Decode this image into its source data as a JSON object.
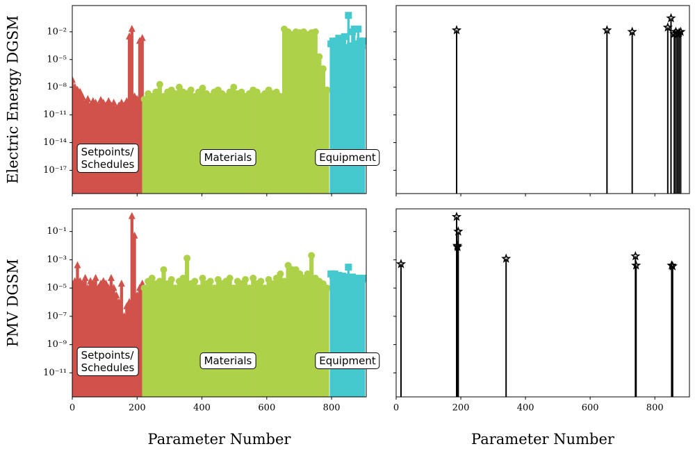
{
  "chart_data": [
    {
      "type": "stem",
      "log_y": true,
      "ylabel": "Electric Energy DGSM",
      "xlim": [
        0,
        907
      ],
      "ylim": [
        3e-20,
        7
      ],
      "xticks": [
        0,
        200,
        400,
        600,
        800
      ],
      "yticks": [
        {
          "value": 1e-17,
          "label": "10⁻¹⁷"
        },
        {
          "value": 1e-14,
          "label": "10⁻¹⁴"
        },
        {
          "value": 1e-11,
          "label": "10⁻¹¹"
        },
        {
          "value": 1e-08,
          "label": "10⁻⁸"
        },
        {
          "value": 1e-05,
          "label": "10⁻⁵"
        },
        {
          "value": 0.01,
          "label": "10⁻²"
        }
      ],
      "annotations": [
        "Setpoints/\nSchedules",
        "Materials",
        "Equipment"
      ],
      "series": [
        {
          "color": "#d0524a",
          "marker": "triangle",
          "x": [
            0,
            8,
            16,
            24,
            32,
            40,
            48,
            56,
            64,
            72,
            80,
            88,
            96,
            104,
            112,
            120,
            128,
            136,
            144,
            152,
            160,
            168,
            176,
            184,
            192,
            200,
            208,
            216
          ],
          "values": [
            6e-08,
            1e-08,
            5e-09,
            3e-09,
            8e-10,
            2e-10,
            5e-10,
            1e-10,
            3e-10,
            2e-10,
            1e-10,
            4e-10,
            2e-10,
            1e-10,
            3e-10,
            1e-10,
            2e-10,
            5e-11,
            1e-10,
            2e-10,
            1e-10,
            3e-10,
            0.003,
            0.02,
            1e-09,
            5e-10,
            0.001,
            0.002
          ]
        },
        {
          "color": "#aed14a",
          "marker": "circle",
          "x": [
            222,
            234,
            246,
            258,
            270,
            282,
            294,
            306,
            318,
            330,
            342,
            354,
            366,
            378,
            390,
            402,
            414,
            426,
            438,
            450,
            462,
            474,
            486,
            498,
            510,
            522,
            534,
            546,
            558,
            570,
            582,
            594,
            606,
            618,
            630,
            642,
            654,
            666,
            678,
            690,
            702,
            714,
            726,
            738,
            750,
            762,
            774,
            786
          ],
          "values": [
            5e-10,
            2e-09,
            1e-09,
            3e-09,
            2e-08,
            1e-09,
            3e-09,
            5e-09,
            2e-09,
            1e-08,
            3e-09,
            2e-09,
            5e-09,
            1e-09,
            3e-09,
            8e-09,
            2e-09,
            1e-09,
            3e-09,
            5e-09,
            2e-09,
            1e-09,
            3e-09,
            1e-08,
            2e-09,
            3e-09,
            1e-09,
            2e-09,
            5e-09,
            3e-09,
            1e-09,
            2e-09,
            5e-09,
            2e-09,
            3e-09,
            1e-09,
            0.02,
            0.01,
            0.005,
            0.01,
            0.008,
            0.01,
            0.005,
            0.008,
            0.01,
            2e-05,
            1e-06,
            5e-09
          ]
        },
        {
          "color": "#45c9cf",
          "marker": "square",
          "x": [
            798,
            804,
            810,
            816,
            822,
            828,
            834,
            840,
            846,
            852,
            858,
            864,
            870,
            876,
            882,
            888,
            894,
            900
          ],
          "values": [
            0.0005,
            0.001,
            0.0003,
            0.001,
            0.002,
            0.0005,
            0.001,
            0.003,
            0.0002,
            0.6,
            0.0003,
            0.01,
            0.02,
            0.0005,
            0.02,
            0.001,
            0.0003,
            0.001
          ]
        }
      ]
    },
    {
      "type": "stem",
      "log_y": true,
      "xlim": [
        0,
        907
      ],
      "ylim": [
        3e-20,
        7
      ],
      "xticks": [
        0,
        200,
        400,
        600,
        800
      ],
      "yticks": [
        1e-17,
        1e-14,
        1e-11,
        1e-08,
        1e-05,
        0.01
      ],
      "series": [
        {
          "color": "#000000",
          "marker": "star",
          "x": [
            187,
            652,
            730,
            840,
            850,
            860,
            865,
            870,
            875,
            880
          ],
          "values": [
            0.015,
            0.015,
            0.01,
            0.03,
            0.3,
            0.006,
            0.01,
            0.006,
            0.008,
            0.01
          ]
        }
      ]
    },
    {
      "type": "stem",
      "log_y": true,
      "ylabel": "PMV DGSM",
      "xlabel": "Parameter Number",
      "xlim": [
        0,
        907
      ],
      "ylim": [
        2e-13,
        4
      ],
      "xticks": [
        0,
        200,
        400,
        600,
        800
      ],
      "yticks": [
        {
          "value": 1e-11,
          "label": "10⁻¹¹"
        },
        {
          "value": 1e-09,
          "label": "10⁻⁹"
        },
        {
          "value": 1e-07,
          "label": "10⁻⁷"
        },
        {
          "value": 1e-05,
          "label": "10⁻⁵"
        },
        {
          "value": 0.001,
          "label": "10⁻³"
        },
        {
          "value": 0.1,
          "label": "10⁻¹"
        }
      ],
      "annotations": [
        "Setpoints/\nSchedules",
        "Materials",
        "Equipment"
      ],
      "series": [
        {
          "color": "#d0524a",
          "marker": "triangle",
          "x": [
            0,
            8,
            16,
            24,
            32,
            40,
            48,
            56,
            64,
            72,
            80,
            88,
            96,
            104,
            112,
            120,
            128,
            136,
            144,
            152,
            160,
            168,
            176,
            184,
            192,
            200,
            208,
            216
          ],
          "values": [
            2e-05,
            3e-05,
            0.0004,
            3e-05,
            2e-05,
            5e-05,
            1e-05,
            3e-05,
            2e-05,
            5e-05,
            1e-05,
            2e-05,
            3e-05,
            2e-05,
            1e-05,
            5e-05,
            1e-05,
            3e-06,
            1e-06,
            2e-05,
            1e-07,
            5e-07,
            1e-06,
            1.2,
            0.05,
            3e-06,
            1e-05,
            2e-05
          ]
        },
        {
          "color": "#aed14a",
          "marker": "circle",
          "x": [
            222,
            234,
            246,
            258,
            270,
            282,
            294,
            306,
            318,
            330,
            342,
            354,
            366,
            378,
            390,
            402,
            414,
            426,
            438,
            450,
            462,
            474,
            486,
            498,
            510,
            522,
            534,
            546,
            558,
            570,
            582,
            594,
            606,
            618,
            630,
            642,
            654,
            666,
            678,
            690,
            702,
            714,
            726,
            738,
            750,
            762,
            774,
            786
          ],
          "values": [
            1e-05,
            3e-05,
            5e-05,
            2e-05,
            3e-05,
            0.0002,
            2e-05,
            4e-05,
            1e-05,
            3e-05,
            5e-05,
            0.0013,
            2e-05,
            3e-05,
            1e-05,
            5e-05,
            2e-05,
            3e-05,
            1e-05,
            4e-05,
            2e-05,
            3e-05,
            5e-05,
            1e-05,
            3e-05,
            2e-05,
            4e-05,
            1e-05,
            5e-05,
            2e-05,
            3e-05,
            1e-05,
            4e-05,
            2e-05,
            5e-05,
            0.0001,
            3e-05,
            0.0004,
            0.0002,
            0.0002,
            0.0001,
            5e-05,
            0.0001,
            0.002,
            5e-05,
            3e-05,
            2e-05,
            1e-05
          ]
        },
        {
          "color": "#45c9cf",
          "marker": "square",
          "x": [
            798,
            804,
            810,
            816,
            822,
            828,
            834,
            840,
            846,
            852,
            858,
            864,
            870,
            876,
            882,
            888,
            894,
            900
          ],
          "values": [
            0.0001,
            8e-05,
            0.0001,
            6e-05,
            8e-05,
            5e-05,
            7e-05,
            5e-05,
            6e-05,
            0.0003,
            5e-05,
            6e-05,
            4e-05,
            5e-05,
            4e-05,
            5e-05,
            4e-05,
            5e-05
          ]
        }
      ]
    },
    {
      "type": "stem",
      "log_y": true,
      "xlabel": "Parameter Number",
      "xlim": [
        0,
        907
      ],
      "ylim": [
        2e-13,
        4
      ],
      "xticks": [
        0,
        200,
        400,
        600,
        800
      ],
      "yticks": [
        1e-11,
        1e-09,
        1e-07,
        1e-05,
        0.001,
        0.1
      ],
      "series": [
        {
          "color": "#000000",
          "marker": "star",
          "x": [
            15,
            187,
            189,
            190,
            192,
            340,
            740,
            742,
            852,
            855
          ],
          "values": [
            0.0005,
            1.1,
            0.01,
            0.008,
            0.1,
            0.0012,
            0.0018,
            0.0004,
            0.0004,
            0.00035
          ]
        }
      ]
    }
  ]
}
